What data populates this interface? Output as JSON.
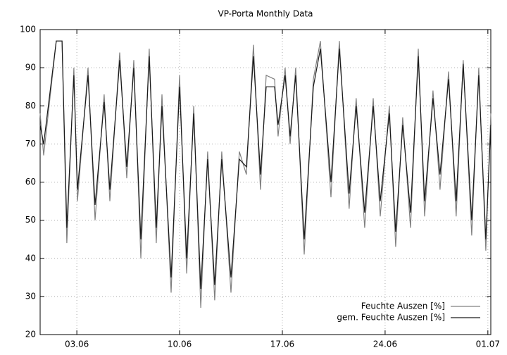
{
  "chart_data": {
    "type": "line",
    "title": "VP-Porta Monthly Data",
    "x": [
      0.5,
      0.74,
      1.6,
      1.99,
      2.32,
      2.8,
      3.04,
      3.76,
      4.24,
      4.86,
      5.25,
      5.92,
      6.4,
      6.88,
      7.36,
      7.93,
      8.41,
      8.8,
      9.42,
      10.0,
      10.48,
      10.96,
      11.44,
      11.91,
      12.39,
      12.87,
      13.5,
      14.07,
      14.55,
      15.03,
      15.51,
      15.9,
      16.47,
      16.71,
      17.19,
      17.53,
      17.91,
      18.49,
      19.11,
      19.59,
      20.31,
      20.88,
      21.55,
      22.03,
      22.61,
      23.19,
      23.67,
      24.29,
      24.72,
      25.2,
      25.73,
      26.26,
      26.69,
      27.26,
      27.74,
      28.32,
      28.84,
      29.32,
      29.9,
      30.38,
      30.86,
      31.2
    ],
    "series": [
      {
        "name": "Feuchte Auszen [%]",
        "color": "#808080",
        "values": [
          78,
          67,
          97,
          97,
          44,
          90,
          55,
          90,
          50,
          83,
          55,
          94,
          61,
          92,
          40,
          95,
          44,
          83,
          31,
          88,
          36,
          80,
          27,
          68,
          29,
          68,
          31,
          68,
          62,
          96,
          58,
          88,
          87,
          72,
          90,
          70,
          90,
          41,
          87,
          97,
          56,
          97,
          53,
          82,
          48,
          82,
          51,
          80,
          43,
          77,
          48,
          95,
          51,
          84,
          58,
          89,
          51,
          92,
          46,
          90,
          42,
          78
        ]
      },
      {
        "name": "gem. Feuchte Auszen [%]",
        "color": "#1a1a1a",
        "values": [
          75,
          70,
          97,
          97,
          48,
          88,
          58,
          88,
          54,
          81,
          58,
          92,
          64,
          90,
          45,
          93,
          48,
          80,
          35,
          85,
          40,
          78,
          32,
          66,
          33,
          66,
          35,
          66,
          64,
          93,
          62,
          85,
          85,
          75,
          88,
          72,
          88,
          45,
          85,
          95,
          60,
          95,
          57,
          80,
          52,
          80,
          55,
          78,
          47,
          75,
          52,
          93,
          55,
          82,
          62,
          87,
          55,
          91,
          50,
          88,
          45,
          75
        ]
      }
    ],
    "xlim": [
      0.5,
      31.2
    ],
    "xticks": [
      {
        "value": 3,
        "label": "03.06"
      },
      {
        "value": 10,
        "label": "10.06"
      },
      {
        "value": 17,
        "label": "17.06"
      },
      {
        "value": 24,
        "label": "24.06"
      },
      {
        "value": 31,
        "label": "01.07"
      }
    ],
    "ylim": [
      20,
      100
    ],
    "yticks": [
      20,
      30,
      40,
      50,
      60,
      70,
      80,
      90,
      100
    ],
    "grid": true,
    "legend": "bottom-right"
  }
}
